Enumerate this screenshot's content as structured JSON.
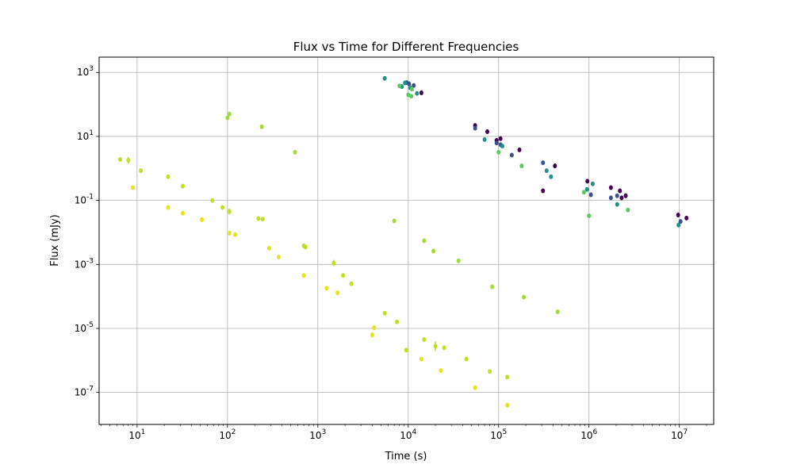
{
  "chart_data": {
    "type": "scatter",
    "title": "Flux vs Time for Different Frequencies",
    "xlabel": "Time (s)",
    "ylabel": "Flux (mJy)",
    "xscale": "log",
    "yscale": "log",
    "xlim": [
      3.8,
      24000000
    ],
    "ylim": [
      1e-08,
      3000
    ],
    "grid": true,
    "legend": "none",
    "colormap": "viridis",
    "x_tick_labels": [
      "10^1",
      "10^2",
      "10^3",
      "10^4",
      "10^5",
      "10^6",
      "10^7"
    ],
    "x_tick_values": [
      10,
      100,
      1000,
      10000,
      100000,
      1000000,
      10000000
    ],
    "y_tick_labels": [
      "10^-7",
      "10^-5",
      "10^-3",
      "10^-1",
      "10^1",
      "10^3"
    ],
    "y_tick_values": [
      1e-07,
      1e-05,
      0.001,
      0.1,
      10,
      1000
    ],
    "series": [
      {
        "color": "#440154",
        "points": [
          [
            14000,
            230,
            0.15
          ],
          [
            55000,
            22,
            0.1
          ],
          [
            75000,
            14,
            0.12
          ],
          [
            95000,
            7.5,
            0.1
          ],
          [
            105000,
            8.5,
            0.1
          ],
          [
            170000,
            3.8,
            0.06
          ],
          [
            310000,
            0.2,
            0.1
          ],
          [
            420000,
            1.2,
            0.15
          ],
          [
            960000,
            0.4,
            0.06
          ],
          [
            1750000,
            0.25,
            0.1
          ],
          [
            2200000,
            0.2,
            0.12
          ],
          [
            2300000,
            0.12,
            0.1
          ],
          [
            2550000,
            0.14,
            0.06
          ],
          [
            9700000,
            0.035,
            0.12
          ],
          [
            12000000,
            0.028,
            0.1
          ]
        ]
      },
      {
        "color": "#3b528b",
        "points": [
          [
            9600,
            480,
            0.12
          ],
          [
            10200,
            440,
            0.1
          ],
          [
            11500,
            390,
            0.08
          ],
          [
            55000,
            18,
            0.08
          ],
          [
            95000,
            6.2,
            0.06
          ],
          [
            105000,
            5.5,
            0.06
          ],
          [
            140000,
            2.6,
            0.06
          ],
          [
            310000,
            1.5,
            0.04
          ],
          [
            1050000,
            0.15,
            0.06
          ],
          [
            1750000,
            0.12,
            0.06
          ],
          [
            2050000,
            0.14,
            0.06
          ],
          [
            10300000,
            0.022,
            0.1
          ]
        ]
      },
      {
        "color": "#21918c",
        "points": [
          [
            5500,
            650,
            0.1
          ],
          [
            8500,
            360,
            0.1
          ],
          [
            9200,
            470,
            0.12
          ],
          [
            10500,
            330,
            0.1
          ],
          [
            12500,
            220,
            0.05
          ],
          [
            70000,
            8,
            0.04
          ],
          [
            110000,
            5,
            0.05
          ],
          [
            340000,
            0.85,
            0.1
          ],
          [
            380000,
            0.55,
            0.05
          ],
          [
            950000,
            0.22,
            0.06
          ],
          [
            1100000,
            0.33,
            0.08
          ],
          [
            2050000,
            0.075,
            0.04
          ],
          [
            9800000,
            0.017,
            0.15
          ]
        ]
      },
      {
        "color": "#5ec962",
        "points": [
          [
            8000,
            380,
            0.1
          ],
          [
            10000,
            200,
            0.12
          ],
          [
            10800,
            180,
            0.1
          ],
          [
            11000,
            300,
            0.08
          ],
          [
            100000,
            3.2,
            0.1
          ],
          [
            180000,
            1.2,
            0.08
          ],
          [
            880000,
            0.18,
            0.08
          ],
          [
            2700000,
            0.05,
            0.08
          ],
          [
            1000000,
            0.033,
            0.1
          ]
        ]
      },
      {
        "color": "#a5db36",
        "points": [
          [
            100,
            38,
            0.12
          ],
          [
            105,
            50,
            0.1
          ],
          [
            240,
            20,
            0.1
          ],
          [
            560,
            3.2,
            0.1
          ],
          [
            7000,
            0.023,
            0.1
          ],
          [
            15000,
            0.0055,
            0.1
          ],
          [
            19000,
            0.0026,
            0.06
          ],
          [
            36000,
            0.0013,
            0.1
          ],
          [
            85000,
            0.0002,
            0.1
          ],
          [
            190000,
            9.5e-05,
            0.1
          ],
          [
            450000,
            3.3e-05,
            0.1
          ]
        ]
      },
      {
        "color": "#c2df23",
        "points": [
          [
            6.5,
            1.9,
            0.08
          ],
          [
            8,
            1.8,
            0.2
          ],
          [
            11,
            0.85,
            0.1
          ],
          [
            22,
            0.55,
            0.06
          ],
          [
            32,
            0.28,
            0.12
          ],
          [
            68,
            0.1,
            0.05
          ],
          [
            88,
            0.06,
            0.08
          ],
          [
            105,
            0.045,
            0.2
          ],
          [
            220,
            0.027,
            0.05
          ],
          [
            245,
            0.026,
            0.1
          ],
          [
            700,
            0.0038,
            0.08
          ],
          [
            730,
            0.0035,
            0.05
          ],
          [
            1500,
            0.0011,
            0.2
          ],
          [
            1900,
            0.00045,
            0.1
          ],
          [
            2350,
            0.00025,
            0.08
          ],
          [
            5500,
            3e-05,
            0.08
          ],
          [
            7500,
            1.6e-05,
            0.06
          ],
          [
            9500,
            2.1e-06,
            0.12
          ],
          [
            15000,
            4.5e-06,
            0.12
          ],
          [
            20000,
            2.8e-06,
            0.3
          ],
          [
            25000,
            2.5e-06,
            0.06
          ],
          [
            44000,
            1.1e-06,
            0.1
          ],
          [
            80000,
            4.5e-07,
            0.08
          ],
          [
            125000,
            3e-07,
            0.12
          ]
        ]
      },
      {
        "color": "#e7e419",
        "points": [
          [
            9,
            0.25,
            0.1
          ],
          [
            22,
            0.06,
            0.1
          ],
          [
            32,
            0.04,
            0.05
          ],
          [
            52,
            0.025,
            0.15
          ],
          [
            105,
            0.0095,
            0.05
          ],
          [
            122,
            0.0085,
            0.12
          ],
          [
            290,
            0.0032,
            0.12
          ],
          [
            370,
            0.0017,
            0.05
          ],
          [
            700,
            0.00045,
            0.12
          ],
          [
            1250,
            0.00018,
            0.05
          ],
          [
            1650,
            0.00013,
            0.12
          ],
          [
            4000,
            6.3e-06,
            0.15
          ],
          [
            4200,
            1.05e-05,
            0.05
          ],
          [
            14000,
            1.1e-06,
            0.05
          ],
          [
            23000,
            4.8e-07,
            0.1
          ],
          [
            55000,
            1.4e-07,
            0.1
          ],
          [
            125000,
            4e-08,
            0.15
          ]
        ]
      }
    ]
  }
}
